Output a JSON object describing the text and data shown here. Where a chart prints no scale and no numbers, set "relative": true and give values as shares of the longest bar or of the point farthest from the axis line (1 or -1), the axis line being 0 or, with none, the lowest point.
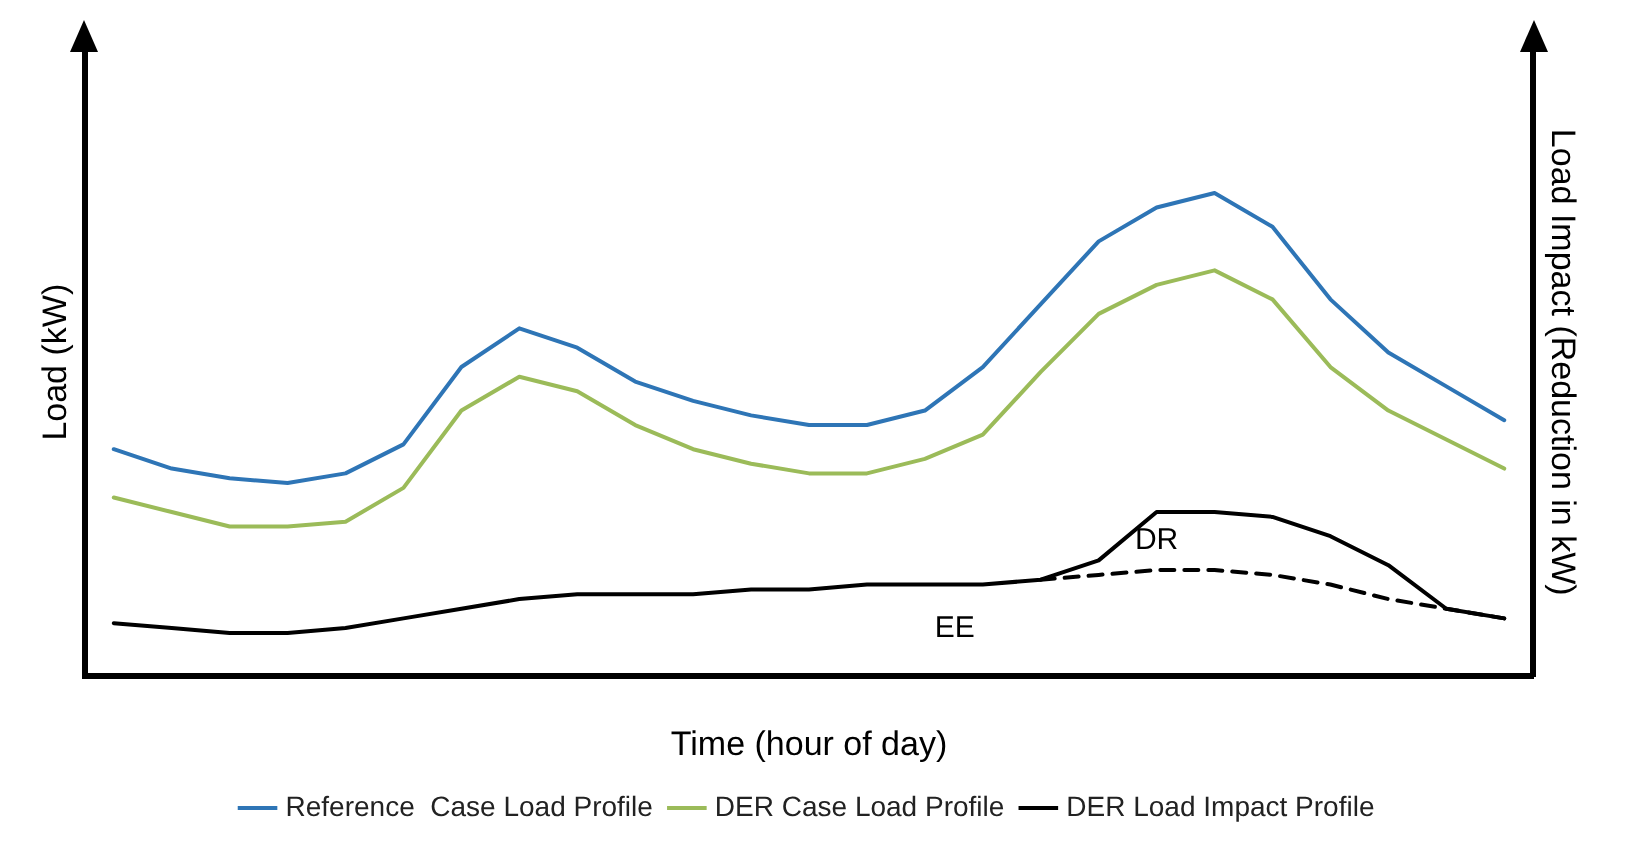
{
  "chart_data": {
    "type": "line",
    "relative": true,
    "xlabel": "Time (hour of day)",
    "ylabel": "Load (kW)",
    "y2label": "Load Impact (Reduction in kW)",
    "categories": [
      null,
      null,
      null,
      null,
      null,
      null,
      null,
      null,
      null,
      null,
      null,
      null,
      null,
      null,
      null,
      null,
      null,
      null,
      null,
      null,
      null,
      null,
      null,
      null,
      null
    ],
    "grid": false,
    "legend": "bottom",
    "marker": "none",
    "series": [
      {
        "name": "Reference  Case Load Profile",
        "color": "#2e75b6",
        "values": [
          0.47,
          0.43,
          0.41,
          0.4,
          0.42,
          0.48,
          0.64,
          0.72,
          0.68,
          0.61,
          0.57,
          0.54,
          0.52,
          0.52,
          0.55,
          0.64,
          0.77,
          0.9,
          0.97,
          1,
          0.93,
          0.78,
          0.67,
          0.6,
          0.53
        ]
      },
      {
        "name": "DER Case Load Profile",
        "color": "#9bbb59",
        "values": [
          0.37,
          0.34,
          0.31,
          0.31,
          0.32,
          0.39,
          0.55,
          0.62,
          0.59,
          0.52,
          0.47,
          0.44,
          0.42,
          0.42,
          0.45,
          0.5,
          0.63,
          0.75,
          0.81,
          0.84,
          0.78,
          0.64,
          0.55,
          0.49,
          0.43
        ]
      },
      {
        "name": "DER Load Impact Profile",
        "color": "#000000",
        "values": [
          0.11,
          0.1,
          0.09,
          0.09,
          0.1,
          0.12,
          0.14,
          0.16,
          0.17,
          0.17,
          0.17,
          0.18,
          0.18,
          0.19,
          0.19,
          0.19,
          0.2,
          0.24,
          0.34,
          0.34,
          0.33,
          0.29,
          0.23,
          0.14,
          0.12
        ]
      },
      {
        "color": "#000000",
        "line_style": "dashed",
        "values": [
          null,
          null,
          null,
          null,
          null,
          null,
          null,
          null,
          null,
          null,
          null,
          null,
          null,
          null,
          null,
          null,
          0.2,
          0.21,
          0.22,
          0.22,
          0.21,
          0.19,
          0.16,
          0.14,
          0.12
        ]
      }
    ],
    "annotations": [
      "DR",
      "EE"
    ]
  }
}
